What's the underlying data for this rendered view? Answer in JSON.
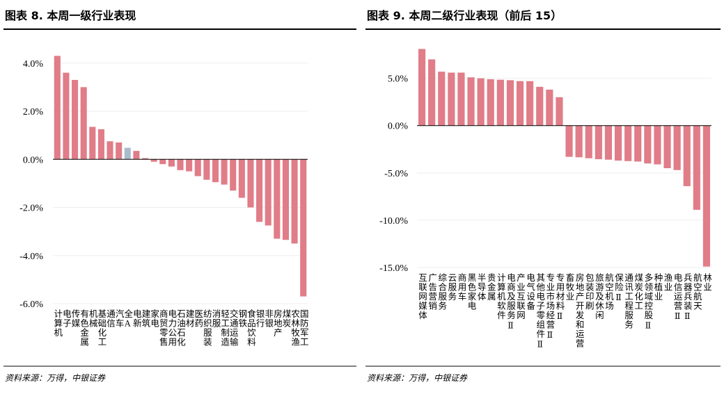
{
  "chart_data": [
    {
      "type": "bar",
      "title": "图表 8. 本周一级行业表现",
      "source": "资料来源：万得，中银证券",
      "categories": [
        "计算机",
        "电子",
        "传媒",
        "有色金属",
        "机械",
        "基础化工",
        "通信",
        "汽车",
        "全A",
        "电新",
        "建筑",
        "家电",
        "商贸零售",
        "电力公用",
        "石油石化",
        "建材",
        "医药",
        "纺织服装",
        "消服",
        "轻工制造",
        "交通运输",
        "钢铁",
        "食品饮料",
        "银行",
        "非银",
        "房地产",
        "煤炭",
        "农林牧渔",
        "国防军工"
      ],
      "values": [
        4.3,
        3.6,
        3.3,
        3.0,
        1.35,
        1.25,
        0.75,
        0.7,
        0.48,
        0.35,
        0.05,
        -0.1,
        -0.2,
        -0.3,
        -0.45,
        -0.5,
        -0.7,
        -0.85,
        -0.95,
        -1.05,
        -1.3,
        -1.6,
        -2.0,
        -2.6,
        -2.75,
        -3.3,
        -3.35,
        -3.5,
        -5.7
      ],
      "colors": [
        "#e07d88",
        "#e07d88",
        "#e07d88",
        "#e07d88",
        "#e07d88",
        "#e07d88",
        "#e07d88",
        "#e07d88",
        "#a9bccb",
        "#e07d88",
        "#e07d88",
        "#e07d88",
        "#e07d88",
        "#e07d88",
        "#e07d88",
        "#e07d88",
        "#e07d88",
        "#e07d88",
        "#e07d88",
        "#e07d88",
        "#e07d88",
        "#e07d88",
        "#e07d88",
        "#e07d88",
        "#e07d88",
        "#e07d88",
        "#e07d88",
        "#e07d88",
        "#e07d88"
      ],
      "ylim": [
        -6,
        4.6
      ],
      "yticks": [
        {
          "value": 4,
          "label": "4.0%"
        },
        {
          "value": 2,
          "label": "2.0%"
        },
        {
          "value": 0,
          "label": "0.0%"
        },
        {
          "value": -2,
          "label": "-2.0%"
        },
        {
          "value": -4,
          "label": "-4.0%"
        },
        {
          "value": -6,
          "label": "-6.0%"
        }
      ],
      "grid": true
    },
    {
      "type": "bar",
      "title": "图表 9. 本周二级行业表现（前后 15）",
      "source": "资料来源：万得，中银证券",
      "categories": [
        "互联网媒体",
        "广告营销",
        "综合服务",
        "云服务",
        "商用车",
        "黑色家电",
        "半导体",
        "贵金属",
        "计算机软件",
        "电商及服务Ⅱ",
        "产业互联网",
        "电气设备",
        "其他电子零组件Ⅱ",
        "专业市场经营Ⅱ",
        "专用材料Ⅱ",
        "畜牧业",
        "房地产开发和运营",
        "包装印刷",
        "旅游及休闲",
        "航空机场",
        "保险Ⅱ",
        "通讯工程服务",
        "煤炭化工",
        "多领域控股Ⅱ",
        "种植业",
        "渔业",
        "电信运营Ⅱ",
        "兵器兵装Ⅱ",
        "航空航天",
        "林业"
      ],
      "values": [
        8.1,
        7.0,
        5.7,
        5.6,
        5.6,
        5.1,
        5.0,
        4.9,
        4.85,
        4.8,
        4.7,
        4.7,
        4.1,
        3.8,
        3.0,
        -3.3,
        -3.35,
        -3.45,
        -3.55,
        -3.6,
        -3.7,
        -3.75,
        -3.8,
        -4.0,
        -4.1,
        -4.5,
        -4.7,
        -6.4,
        -8.9,
        -14.9
      ],
      "color": "#e07d88",
      "ylim": [
        -15,
        8.5
      ],
      "yticks": [
        {
          "value": 5,
          "label": "5.0%"
        },
        {
          "value": 0,
          "label": "0.0%"
        },
        {
          "value": -5,
          "label": "-5.0%"
        },
        {
          "value": -10,
          "label": "-10.0%"
        },
        {
          "value": -15,
          "label": "-15.0%"
        }
      ],
      "grid": true
    }
  ]
}
